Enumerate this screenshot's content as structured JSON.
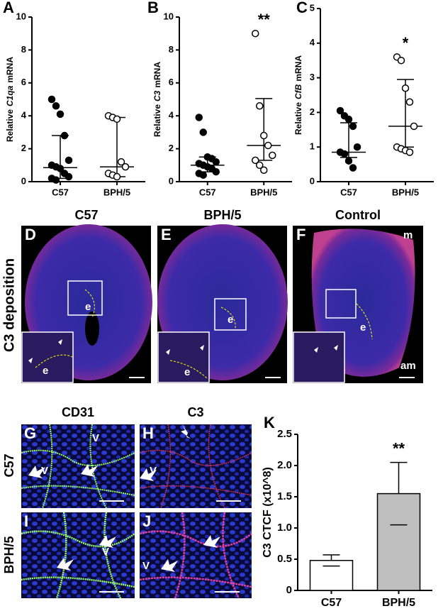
{
  "chart_data": [
    {
      "type": "dot",
      "panel": "A",
      "ylabel": {
        "before": "Relative",
        "gene": "C1qa",
        "after": "mRNA"
      },
      "categories": [
        "C57",
        "BPH/5"
      ],
      "groups": [
        {
          "fill": "#000000",
          "values": [
            5.0,
            4.6,
            4.1,
            2.8,
            1.3,
            1.0,
            0.9,
            0.8,
            0.5,
            0.3,
            0.2,
            0.1
          ],
          "median": 0.85,
          "range": [
            0.2,
            2.8
          ]
        },
        {
          "fill": "#ffffff",
          "values": [
            4.0,
            3.9,
            3.8,
            1.2,
            0.9,
            0.5,
            0.4,
            0.3
          ],
          "median": 0.9,
          "range": [
            0.3,
            3.9
          ]
        }
      ],
      "significance": [
        null,
        null
      ],
      "ylim": [
        0,
        10
      ],
      "yticks": [
        0,
        2,
        4,
        6,
        8,
        10
      ]
    },
    {
      "type": "dot",
      "panel": "B",
      "ylabel": {
        "before": "Relative",
        "gene": "C3",
        "after": "mRNA"
      },
      "categories": [
        "C57",
        "BPH/5"
      ],
      "groups": [
        {
          "fill": "#000000",
          "values": [
            3.9,
            3.0,
            1.5,
            1.4,
            1.2,
            1.1,
            1.0,
            0.9,
            0.8,
            0.6,
            0.5,
            0.4
          ],
          "median": 1.0,
          "range": [
            0.6,
            1.5
          ]
        },
        {
          "fill": "#ffffff",
          "values": [
            9.0,
            4.6,
            2.8,
            2.2,
            1.6,
            1.3,
            1.0,
            0.7
          ],
          "median": 2.2,
          "range": [
            1.3,
            5.05
          ]
        }
      ],
      "significance": [
        null,
        "**"
      ],
      "ylim": [
        0,
        10
      ],
      "yticks": [
        0,
        2,
        4,
        6,
        8,
        10
      ]
    },
    {
      "type": "dot",
      "panel": "C",
      "ylabel": {
        "before": "Relative",
        "gene": "CfB",
        "after": "mRNA"
      },
      "categories": [
        "C57",
        "BPH/5"
      ],
      "groups": [
        {
          "fill": "#000000",
          "values": [
            2.05,
            1.9,
            1.8,
            1.6,
            1.0,
            0.85,
            0.8,
            0.6,
            0.4
          ],
          "median": 0.85,
          "range": [
            0.7,
            1.7
          ]
        },
        {
          "fill": "#ffffff",
          "values": [
            3.6,
            3.5,
            2.7,
            2.3,
            1.6,
            1.0,
            0.95,
            0.9,
            0.85
          ],
          "median": 1.6,
          "range": [
            1.0,
            2.95
          ]
        }
      ],
      "significance": [
        null,
        "*"
      ],
      "ylim": [
        0,
        5
      ],
      "yticks": [
        0,
        1,
        2,
        3,
        4,
        5
      ]
    },
    {
      "type": "bar",
      "panel": "K",
      "ylabel": {
        "before": "C3 CTCF (x10^8)"
      },
      "categories": [
        "C57",
        "BPH/5"
      ],
      "values": [
        0.48,
        1.55
      ],
      "errors": [
        0.09,
        0.5
      ],
      "colors": [
        "#ffffff",
        "#bfbfbf"
      ],
      "significance": [
        null,
        "**"
      ],
      "ylim": [
        0,
        2.5
      ],
      "yticks": [
        0,
        0.5,
        {
          "value": 1,
          "label": "1.0"
        },
        1.5,
        {
          "value": 2,
          "label": "2.0"
        },
        2.5
      ]
    }
  ],
  "deposition": {
    "row_label": "C3 deposition",
    "panels": [
      {
        "letter": "D",
        "title": "C57",
        "marks": [
          "e",
          "e"
        ]
      },
      {
        "letter": "E",
        "title": "BPH/5",
        "marks": [
          "e",
          "e"
        ]
      },
      {
        "letter": "F",
        "title": "Control",
        "marks": [
          "e",
          "m",
          "am"
        ]
      }
    ]
  },
  "staining": {
    "columns": [
      "CD31",
      "C3"
    ],
    "rows": [
      "C57",
      "BPH/5"
    ],
    "panels": [
      {
        "letter": "G",
        "marks": [
          "V",
          "V"
        ]
      },
      {
        "letter": "H",
        "marks": [
          "V"
        ]
      },
      {
        "letter": "I",
        "marks": [
          "V"
        ]
      },
      {
        "letter": "J",
        "marks": [
          "V"
        ]
      }
    ]
  }
}
